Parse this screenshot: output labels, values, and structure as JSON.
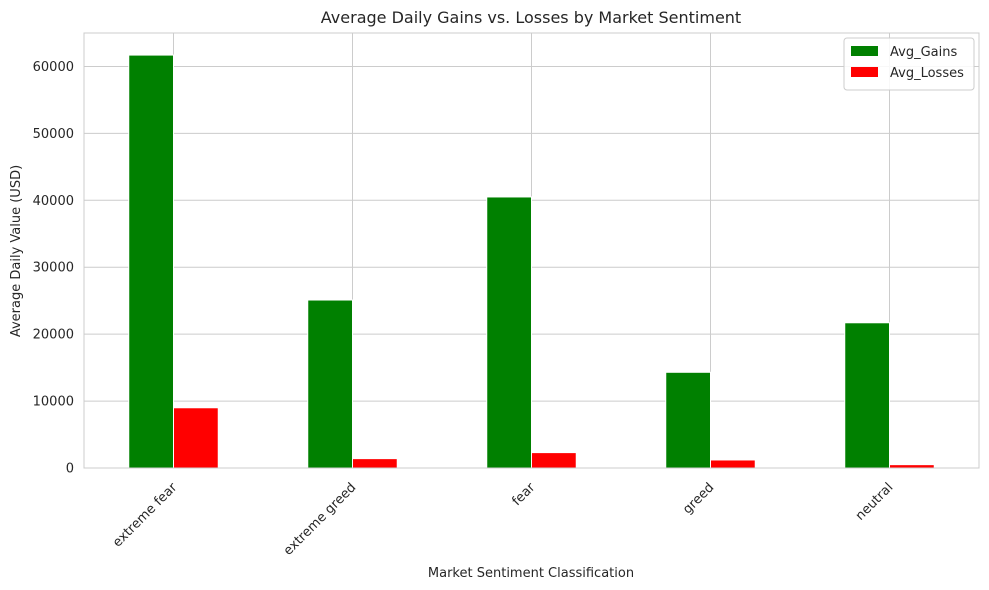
{
  "chart_data": {
    "type": "bar",
    "title": "Average Daily Gains vs. Losses by Market Sentiment",
    "xlabel": "Market Sentiment Classification",
    "ylabel": "Average Daily Value (USD)",
    "categories": [
      "extreme fear",
      "extreme greed",
      "fear",
      "greed",
      "neutral"
    ],
    "series": [
      {
        "name": "Avg_Gains",
        "color": "#008000",
        "values": [
          61700,
          25100,
          40500,
          14300,
          21700
        ]
      },
      {
        "name": "Avg_Losses",
        "color": "#ff0000",
        "values": [
          9000,
          1400,
          2300,
          1200,
          500
        ]
      }
    ],
    "ylim": [
      0,
      65000
    ],
    "yticks": [
      0,
      10000,
      20000,
      30000,
      40000,
      50000,
      60000
    ],
    "ytick_labels": [
      "0",
      "10000",
      "20000",
      "30000",
      "40000",
      "50000",
      "60000"
    ],
    "grid": true,
    "legend_position": "top-right"
  }
}
